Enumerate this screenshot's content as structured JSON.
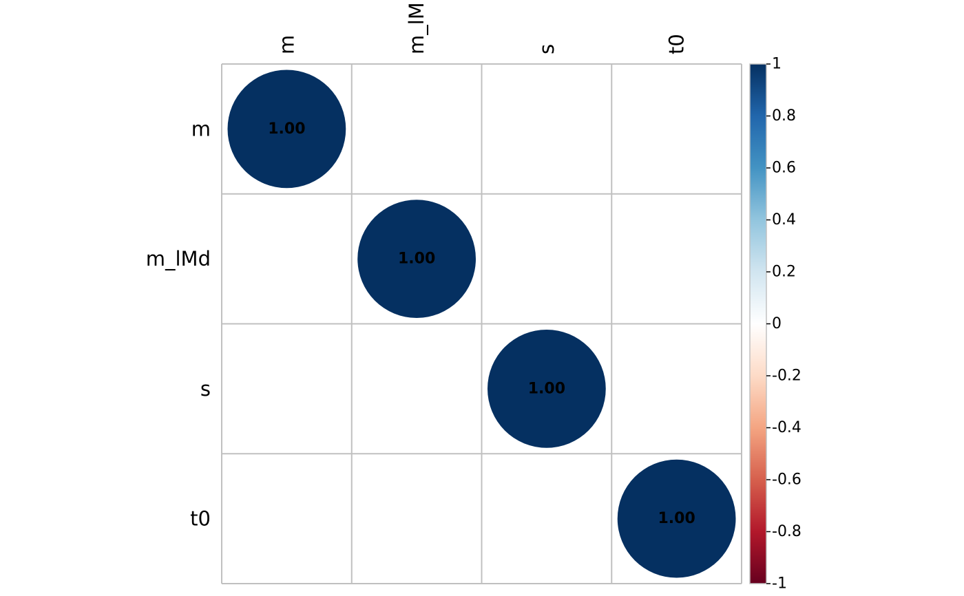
{
  "chart_data": {
    "type": "heatmap",
    "title": "",
    "row_labels": [
      "m",
      "m_lMd",
      "s",
      "t0"
    ],
    "col_labels": [
      "m",
      "m_lM",
      "s",
      "t0"
    ],
    "cells": [
      {
        "row": "m",
        "col": "m",
        "value": 1.0,
        "label": "1.00"
      },
      {
        "row": "m_lMd",
        "col": "m_lM",
        "value": 1.0,
        "label": "1.00"
      },
      {
        "row": "s",
        "col": "s",
        "value": 1.0,
        "label": "1.00"
      },
      {
        "row": "t0",
        "col": "t0",
        "value": 1.0,
        "label": "1.00"
      }
    ],
    "marker": "circle",
    "colorbar": {
      "range": [
        -1,
        1
      ],
      "ticks": [
        "1",
        "0.8",
        "0.6",
        "0.4",
        "0.2",
        "0",
        "-0.2",
        "-0.4",
        "-0.6",
        "-0.8",
        "-1"
      ],
      "stops": [
        {
          "value": -1,
          "color": "#67001f"
        },
        {
          "value": -0.8,
          "color": "#b2182b"
        },
        {
          "value": -0.6,
          "color": "#d6604d"
        },
        {
          "value": -0.4,
          "color": "#f4a582"
        },
        {
          "value": -0.2,
          "color": "#fddbc7"
        },
        {
          "value": 0,
          "color": "#ffffff"
        },
        {
          "value": 0.2,
          "color": "#d1e5f0"
        },
        {
          "value": 0.4,
          "color": "#92c5de"
        },
        {
          "value": 0.6,
          "color": "#4393c3"
        },
        {
          "value": 0.8,
          "color": "#2166ac"
        },
        {
          "value": 1,
          "color": "#053061"
        }
      ]
    },
    "grid": true
  }
}
